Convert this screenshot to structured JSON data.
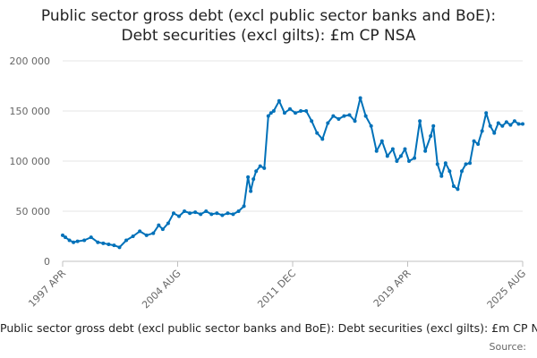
{
  "chart_data": {
    "type": "line",
    "title_lines": [
      "Public sector gross debt (excl public sector banks and BoE):",
      "Debt securities (excl gilts): £m CP NSA"
    ],
    "xlabel": "",
    "ylabel": "",
    "ylim": [
      0,
      200000
    ],
    "yticks": [
      0,
      50000,
      100000,
      150000,
      200000
    ],
    "ytick_labels": [
      "0",
      "50 000",
      "100 000",
      "150 000",
      "200 000"
    ],
    "xticks": [
      "1997 APR",
      "2004 AUG",
      "2011 DEC",
      "2019 APR",
      "2025 AUG"
    ],
    "grid": "horizontal",
    "line_color": "#0071b9",
    "legend_text": "Public sector gross debt (excl public sector banks and BoE): Debt securities (excl gilts): £m CP NSA",
    "source_label": "Source:",
    "series": [
      {
        "x": [
          "1997-04",
          "1997-06",
          "1997-09",
          "1997-12",
          "1998-03",
          "1998-08",
          "1999-01",
          "1999-06",
          "1999-10",
          "2000-02",
          "2000-06",
          "2000-10",
          "2001-03",
          "2001-08",
          "2002-01",
          "2002-06",
          "2002-11",
          "2003-03",
          "2003-06",
          "2003-10",
          "2004-02",
          "2004-06",
          "2004-10",
          "2005-02",
          "2005-06",
          "2005-10",
          "2006-02",
          "2006-06",
          "2006-10",
          "2007-02",
          "2007-06",
          "2007-10",
          "2008-02",
          "2008-06",
          "2008-09",
          "2008-11",
          "2009-01",
          "2009-03",
          "2009-06",
          "2009-09",
          "2009-12",
          "2010-02",
          "2010-04",
          "2010-08",
          "2010-12",
          "2011-04",
          "2011-08",
          "2011-12",
          "2012-04",
          "2012-08",
          "2012-12",
          "2013-04",
          "2013-08",
          "2013-12",
          "2014-04",
          "2014-08",
          "2014-12",
          "2015-04",
          "2015-08",
          "2015-12",
          "2016-04",
          "2016-08",
          "2016-12",
          "2017-04",
          "2017-08",
          "2017-11",
          "2018-02",
          "2018-05",
          "2018-08",
          "2018-12",
          "2019-04",
          "2019-08",
          "2019-12",
          "2020-02",
          "2020-05",
          "2020-08",
          "2020-11",
          "2021-02",
          "2021-05",
          "2021-08",
          "2021-11",
          "2022-02",
          "2022-05",
          "2022-08",
          "2022-11",
          "2023-02",
          "2023-05",
          "2023-08",
          "2023-11",
          "2024-02",
          "2024-05",
          "2024-08",
          "2024-11",
          "2025-02",
          "2025-05",
          "2025-08"
        ],
        "values": [
          26000,
          24000,
          21000,
          19000,
          20000,
          21000,
          24000,
          19000,
          18000,
          17000,
          16000,
          14000,
          21000,
          25000,
          30000,
          26000,
          28000,
          36000,
          32000,
          38000,
          48000,
          45000,
          50000,
          48000,
          49000,
          47000,
          50000,
          47000,
          48000,
          46000,
          48000,
          47000,
          50000,
          55000,
          84000,
          70000,
          82000,
          90000,
          95000,
          93000,
          145000,
          148000,
          150000,
          160000,
          148000,
          152000,
          148000,
          150000,
          150000,
          140000,
          128000,
          122000,
          138000,
          145000,
          142000,
          145000,
          146000,
          140000,
          163000,
          145000,
          135000,
          110000,
          120000,
          105000,
          112000,
          100000,
          105000,
          112000,
          100000,
          103000,
          140000,
          110000,
          125000,
          135000,
          97000,
          85000,
          98000,
          90000,
          75000,
          72000,
          90000,
          97000,
          98000,
          120000,
          117000,
          130000,
          148000,
          135000,
          128000,
          138000,
          135000,
          139000,
          136000,
          140000,
          137000,
          137000
        ]
      }
    ]
  }
}
